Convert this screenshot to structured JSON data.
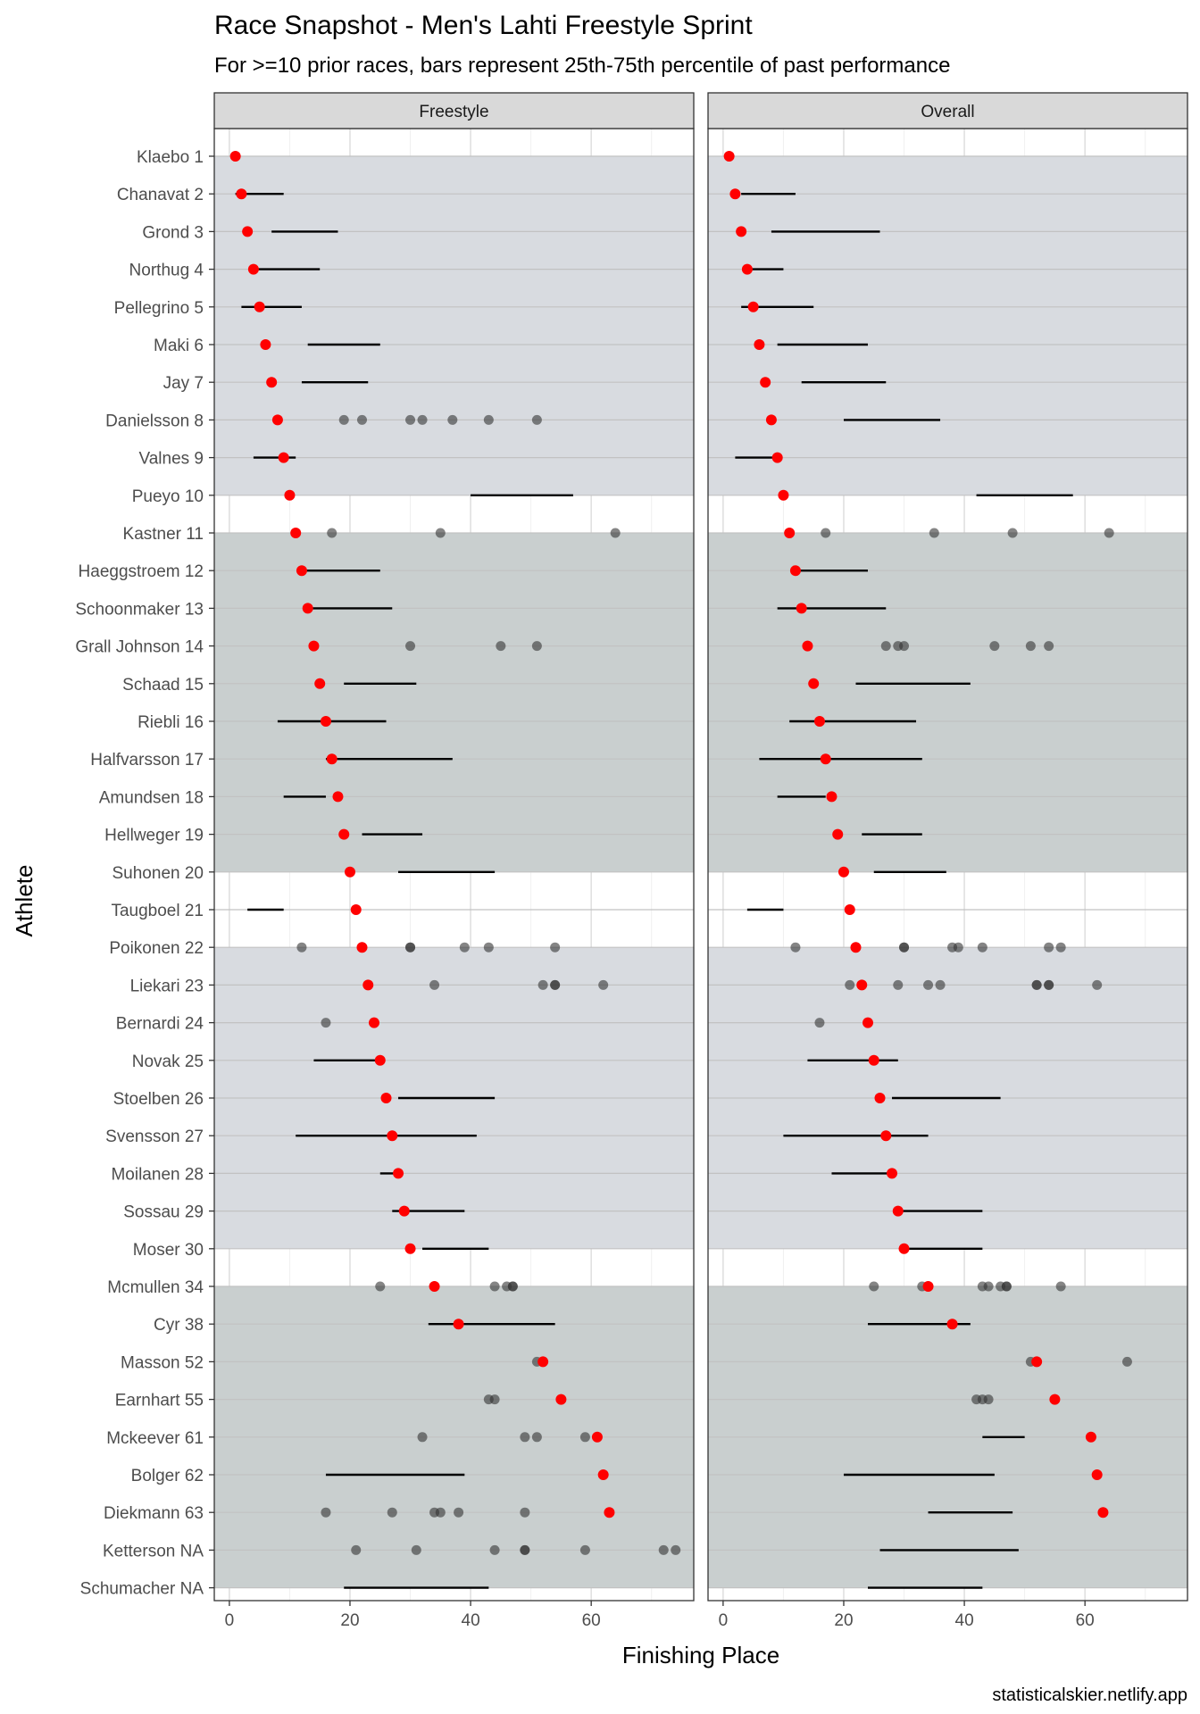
{
  "title": "Race Snapshot -  Men's Lahti Freestyle Sprint",
  "subtitle": "For >=10 prior races, bars represent 25th-75th percentile of past performance",
  "caption": "statisticalskier.netlify.app",
  "colors": {
    "band_a": "#d8dbe0",
    "band_b": "#c9cfcf",
    "current_point": "#ff0000",
    "past_point": "#333333",
    "bar": "#000000",
    "grid_major": "#e0e0e0",
    "panel_border": "#333333",
    "strip_fill": "#d9d9d9"
  },
  "chart_data": {
    "type": "scatter",
    "xlabel": "Finishing Place",
    "ylabel": "Athlete",
    "xlim": [
      -2.5,
      77
    ],
    "x_ticks": [
      0,
      20,
      40,
      60
    ],
    "grid": true,
    "athletes": [
      "Klaebo 1",
      "Chanavat 2",
      "Grond 3",
      "Northug 4",
      "Pellegrino 5",
      "Maki 6",
      "Jay 7",
      "Danielsson 8",
      "Valnes 9",
      "Pueyo 10",
      "Kastner 11",
      "Haeggstroem 12",
      "Schoonmaker 13",
      "Grall Johnson 14",
      "Schaad 15",
      "Riebli 16",
      "Halfvarsson 17",
      "Amundsen 18",
      "Hellweger 19",
      "Suhonen 20",
      "Taugboel 21",
      "Poikonen 22",
      "Liekari 23",
      "Bernardi 24",
      "Novak 25",
      "Stoelben 26",
      "Svensson 27",
      "Moilanen 28",
      "Sossau 29",
      "Moser 30",
      "Mcmullen 34",
      "Cyr 38",
      "Masson 52",
      "Earnhart 55",
      "Mckeever 61",
      "Bolger 62",
      "Diekmann 63",
      "Ketterson NA",
      "Schumacher NA"
    ],
    "current_place": [
      1,
      2,
      3,
      4,
      5,
      6,
      7,
      8,
      9,
      10,
      11,
      12,
      13,
      14,
      15,
      16,
      17,
      18,
      19,
      20,
      21,
      22,
      23,
      24,
      25,
      26,
      27,
      28,
      29,
      30,
      34,
      38,
      52,
      55,
      61,
      62,
      63,
      null,
      null
    ],
    "bands": [
      {
        "from": 1,
        "to": 10,
        "color": "band_a"
      },
      {
        "from": 11,
        "to": 20,
        "color": "band_b"
      },
      {
        "from": 22,
        "to": 30,
        "color": "band_a"
      },
      {
        "from": 31,
        "to": 39,
        "color": "band_b"
      }
    ],
    "panels": [
      {
        "name": "Freestyle",
        "bars": [
          [
            2,
            1,
            9
          ],
          [
            3,
            7,
            18
          ],
          [
            4,
            4,
            15
          ],
          [
            5,
            2,
            12
          ],
          [
            6,
            13,
            25
          ],
          [
            7,
            12,
            23
          ],
          [
            9,
            4,
            11
          ],
          [
            10,
            40,
            57
          ],
          [
            12,
            12,
            25
          ],
          [
            13,
            13,
            27
          ],
          [
            15,
            19,
            31
          ],
          [
            16,
            8,
            26
          ],
          [
            17,
            16,
            37
          ],
          [
            18,
            9,
            16
          ],
          [
            19,
            22,
            32
          ],
          [
            20,
            28,
            44
          ],
          [
            21,
            3,
            9
          ],
          [
            25,
            14,
            25
          ],
          [
            26,
            28,
            44
          ],
          [
            27,
            11,
            41
          ],
          [
            28,
            25,
            28
          ],
          [
            29,
            27,
            39
          ],
          [
            30,
            32,
            43
          ],
          [
            38,
            33,
            54
          ],
          [
            62,
            16,
            39
          ],
          [
            null,
            19,
            43
          ]
        ],
        "bar_rows": [
          2,
          3,
          4,
          5,
          6,
          7,
          9,
          10,
          12,
          13,
          15,
          16,
          17,
          18,
          19,
          20,
          21,
          25,
          26,
          27,
          28,
          29,
          30,
          32,
          36,
          39
        ],
        "past_points": [
          {
            "row": 8,
            "x": [
              19,
              22,
              30,
              32,
              37,
              43,
              51
            ]
          },
          {
            "row": 11,
            "x": [
              17,
              35,
              64
            ]
          },
          {
            "row": 14,
            "x": [
              30,
              45,
              51
            ]
          },
          {
            "row": 22,
            "x": [
              12,
              30,
              30,
              39,
              43,
              54
            ]
          },
          {
            "row": 23,
            "x": [
              34,
              52,
              54,
              54,
              62
            ]
          },
          {
            "row": 24,
            "x": [
              16
            ]
          },
          {
            "row": 31,
            "x": [
              25,
              44,
              46,
              47,
              47
            ]
          },
          {
            "row": 33,
            "x": [
              51
            ]
          },
          {
            "row": 34,
            "x": [
              43,
              44
            ]
          },
          {
            "row": 35,
            "x": [
              32,
              49,
              51,
              59
            ]
          },
          {
            "row": 37,
            "x": [
              16,
              27,
              34,
              35,
              38,
              49
            ]
          },
          {
            "row": 38,
            "x": [
              21,
              31,
              44,
              49,
              49,
              59,
              72,
              74
            ]
          }
        ]
      },
      {
        "name": "Overall",
        "bars": [
          [
            2,
            3,
            12
          ],
          [
            3,
            8,
            26
          ],
          [
            4,
            4,
            10
          ],
          [
            5,
            3,
            15
          ],
          [
            6,
            9,
            24
          ],
          [
            7,
            13,
            27
          ],
          [
            8,
            20,
            36
          ],
          [
            9,
            2,
            9
          ],
          [
            10,
            42,
            58
          ],
          [
            12,
            12,
            24
          ],
          [
            13,
            9,
            27
          ],
          [
            15,
            22,
            41
          ],
          [
            16,
            11,
            32
          ],
          [
            17,
            6,
            33
          ],
          [
            18,
            9,
            17
          ],
          [
            19,
            23,
            33
          ],
          [
            20,
            25,
            37
          ],
          [
            21,
            4,
            10
          ],
          [
            25,
            14,
            29
          ],
          [
            26,
            28,
            46
          ],
          [
            27,
            10,
            34
          ],
          [
            28,
            18,
            28
          ],
          [
            29,
            29,
            43
          ],
          [
            30,
            30,
            43
          ],
          [
            32,
            24,
            41
          ],
          [
            35,
            43,
            50
          ],
          [
            36,
            20,
            45
          ],
          [
            37,
            34,
            48
          ],
          [
            38,
            26,
            49
          ],
          [
            39,
            24,
            43
          ]
        ],
        "bar_rows": [
          2,
          3,
          4,
          5,
          6,
          7,
          8,
          9,
          10,
          12,
          13,
          15,
          16,
          17,
          18,
          19,
          20,
          21,
          25,
          26,
          27,
          28,
          29,
          30,
          32,
          35,
          36,
          37,
          38,
          39
        ],
        "past_points": [
          {
            "row": 11,
            "x": [
              17,
              35,
              48,
              64
            ]
          },
          {
            "row": 14,
            "x": [
              27,
              29,
              30,
              45,
              51,
              54
            ]
          },
          {
            "row": 22,
            "x": [
              12,
              30,
              30,
              38,
              39,
              43,
              54,
              56
            ]
          },
          {
            "row": 23,
            "x": [
              21,
              29,
              34,
              36,
              52,
              52,
              54,
              54,
              62
            ]
          },
          {
            "row": 24,
            "x": [
              16
            ]
          },
          {
            "row": 31,
            "x": [
              25,
              33,
              43,
              44,
              46,
              47,
              47,
              56
            ]
          },
          {
            "row": 33,
            "x": [
              51,
              67
            ]
          },
          {
            "row": 34,
            "x": [
              42,
              43,
              44
            ]
          }
        ]
      }
    ]
  }
}
